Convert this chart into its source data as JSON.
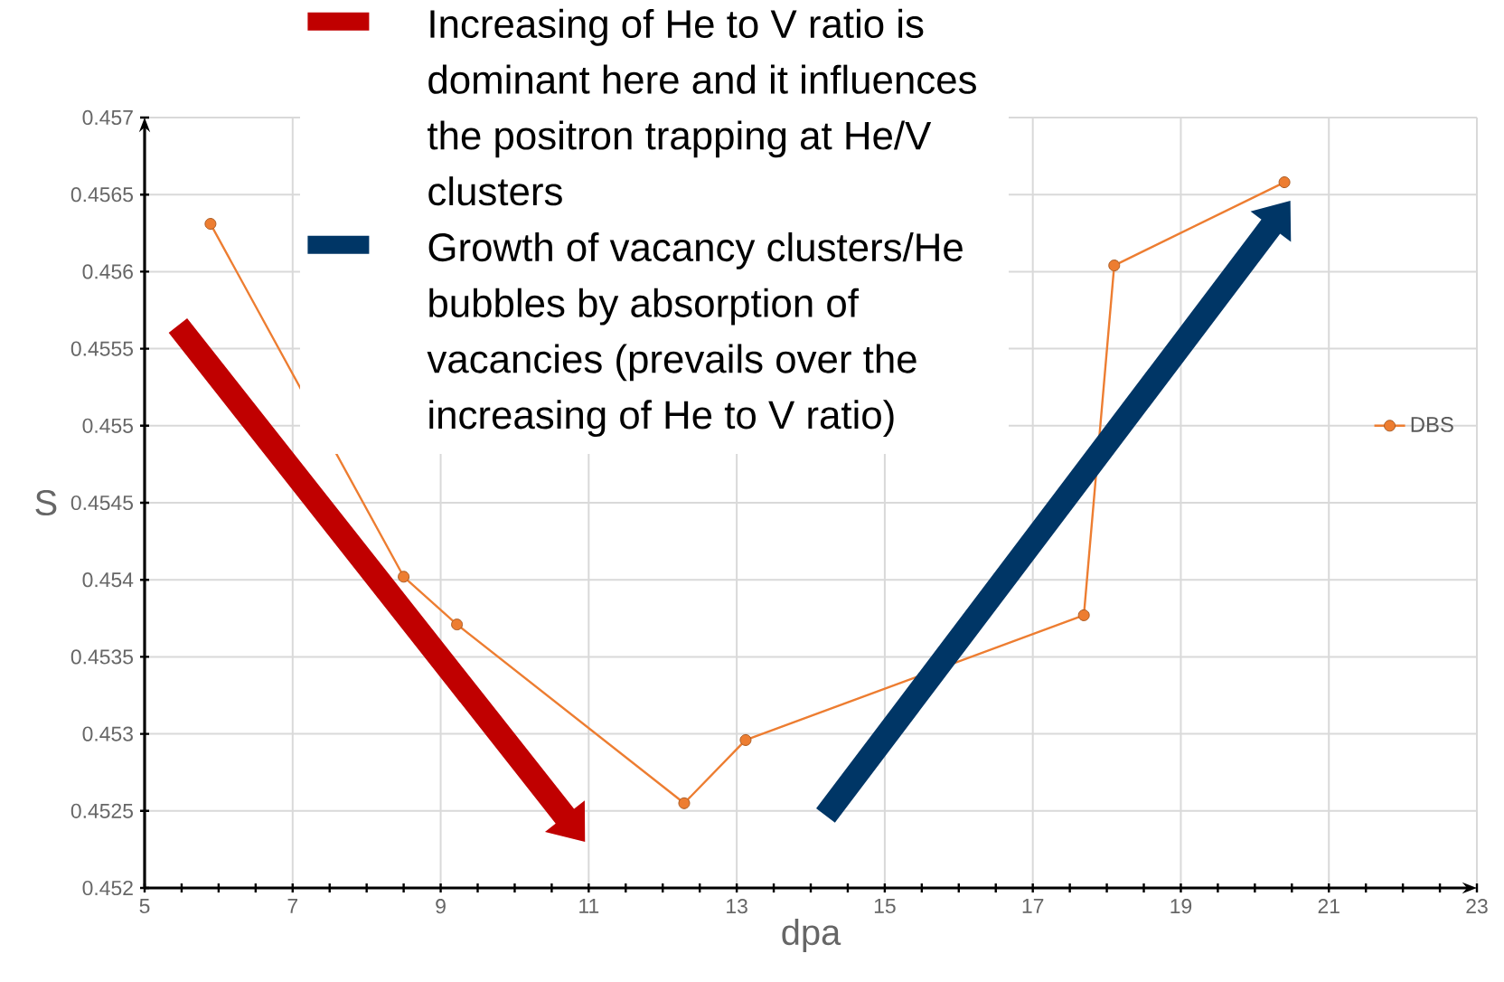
{
  "chart_data": {
    "type": "line",
    "xlabel": "dpa",
    "ylabel": "S",
    "x": [
      5.89,
      8.5,
      9.22,
      12.29,
      13.12,
      17.69,
      18.1,
      20.4
    ],
    "series": [
      {
        "name": "DBS",
        "color": "#ed7d31",
        "values": [
          0.45631,
          0.45402,
          0.45371,
          0.45255,
          0.45296,
          0.45377,
          0.45604,
          0.45658
        ]
      }
    ],
    "xlim": [
      5,
      23
    ],
    "ylim": [
      0.452,
      0.457
    ],
    "xticks": [
      5,
      7,
      9,
      11,
      13,
      15,
      17,
      19,
      21,
      23
    ],
    "yticks": [
      0.452,
      0.4525,
      0.453,
      0.4535,
      0.454,
      0.4545,
      0.455,
      0.4555,
      0.456,
      0.4565,
      0.457
    ],
    "grid": true,
    "legend": "right",
    "marker": "circle",
    "line_style": "solid",
    "annotations": [
      "Increasing of He to V ratio is dominant here and it influences the positron trapping at He/V clusters",
      "Growth of vacancy clusters/He bubbles by absorption of vacancies (prevails over the increasing of He to V ratio)"
    ]
  }
}
